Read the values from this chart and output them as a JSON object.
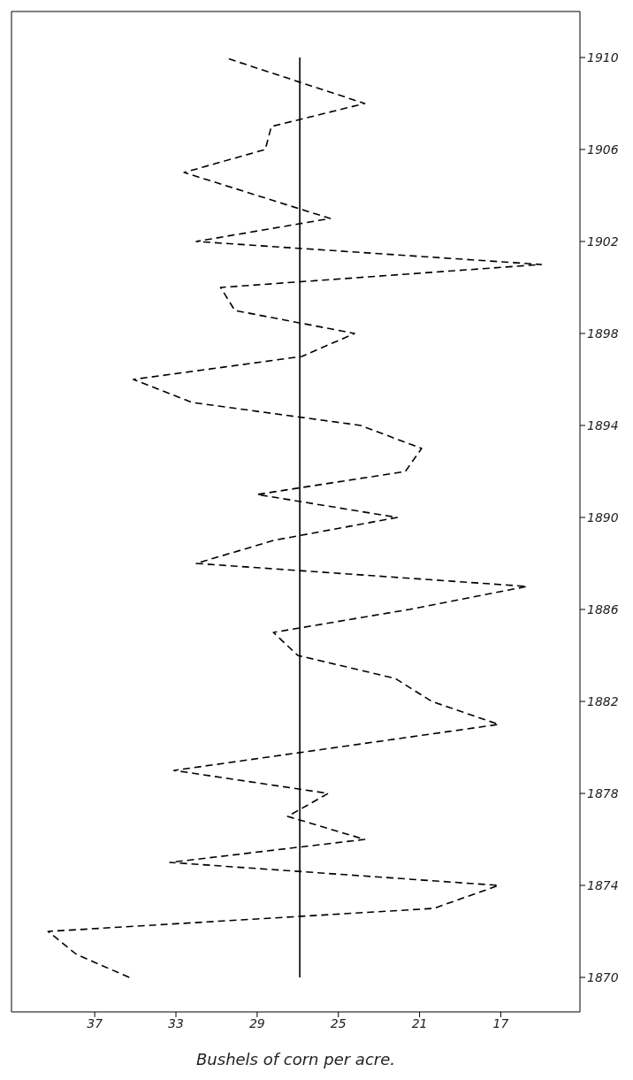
{
  "chart_data": {
    "type": "line",
    "xlabel": "Bushels of corn per acre.",
    "series": [
      {
        "color": "#000000",
        "x": [
          35.3,
          37.9,
          39.3,
          20.3,
          17.1,
          33.3,
          23.7,
          27.5,
          25.5,
          33.1,
          17.1,
          20.4,
          22.2,
          27.0,
          28.2,
          21.5,
          15.7,
          32.0,
          28.2,
          22.1,
          29.0,
          21.7,
          20.9,
          23.9,
          32.2,
          35.1,
          26.8,
          24.2,
          30.1,
          30.8,
          15.0,
          32.0,
          25.4,
          32.6,
          28.6,
          28.3,
          23.7,
          30.6
        ],
        "values": [
          1870,
          1871,
          1872,
          1873,
          1874,
          1875,
          1876,
          1877,
          1878,
          1879,
          1881,
          1882,
          1883,
          1884,
          1885,
          1886,
          1887,
          1888,
          1889,
          1890,
          1891,
          1892,
          1893,
          1894,
          1895,
          1896,
          1897,
          1898,
          1899,
          1900,
          1901,
          1902,
          1903,
          1905,
          1906,
          1907,
          1908,
          1910
        ]
      }
    ],
    "line_style": "dashed",
    "xlim": [
      41.1,
      13.1
    ],
    "xticks": [
      37,
      33,
      29,
      25,
      21,
      17
    ],
    "ylim": [
      1868.5,
      1912
    ],
    "yticks": [
      1870,
      1874,
      1878,
      1882,
      1886,
      1890,
      1894,
      1898,
      1902,
      1906,
      1910
    ],
    "ref_lines": [
      {
        "axis": "x",
        "value": 26.9,
        "color": "#000000",
        "line_style": "solid"
      }
    ]
  }
}
